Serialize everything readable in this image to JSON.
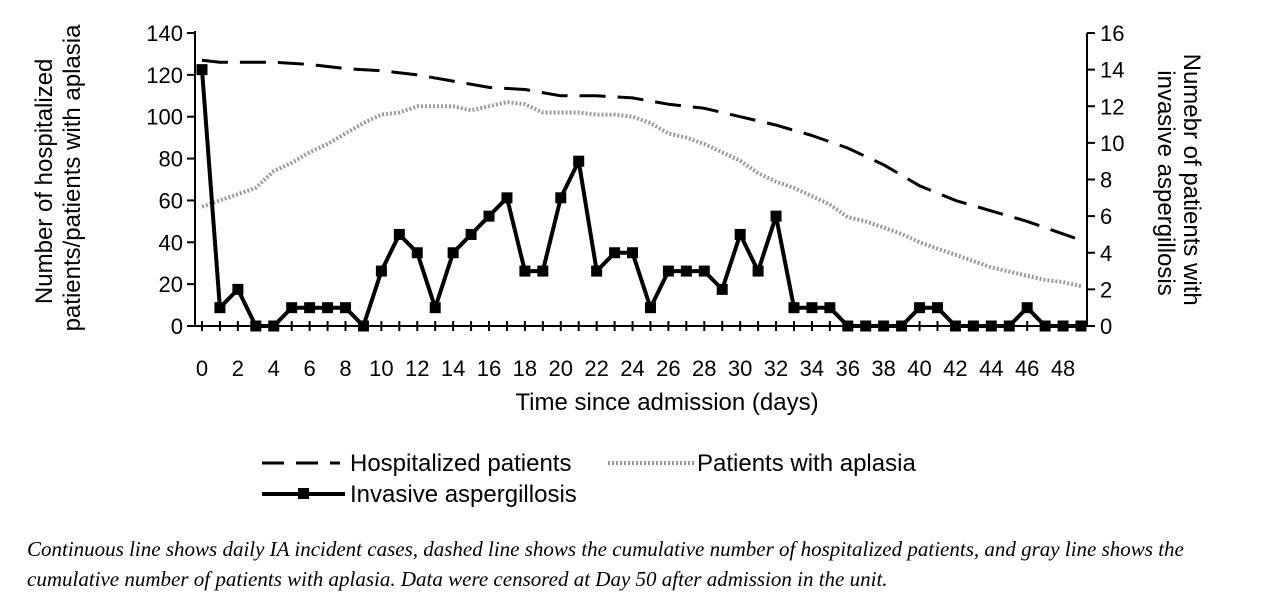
{
  "chart_data": {
    "type": "line",
    "xlabel": "Time since admission (days)",
    "ylabel": "Number of hospitalized patients/patients with aplasia",
    "y2label": "Numebr of patients with invasive aspergillosis",
    "xlim": [
      0,
      49
    ],
    "ylim": [
      0,
      140
    ],
    "y2lim": [
      0,
      16
    ],
    "x_ticks": [
      0,
      2,
      4,
      6,
      8,
      10,
      12,
      14,
      16,
      18,
      20,
      22,
      24,
      26,
      28,
      30,
      32,
      34,
      36,
      38,
      40,
      42,
      44,
      46,
      48
    ],
    "y_ticks": [
      0,
      20,
      40,
      60,
      80,
      100,
      120,
      140
    ],
    "y2_ticks": [
      0,
      2,
      4,
      6,
      8,
      10,
      12,
      14,
      16
    ],
    "series": [
      {
        "name": "Hospitalized patients",
        "axis": "left",
        "style": "dashed",
        "color": "#000000",
        "x": [
          0,
          1,
          4,
          6,
          8,
          10,
          12,
          14,
          16,
          18,
          20,
          22,
          24,
          26,
          28,
          30,
          32,
          34,
          36,
          38,
          40,
          42,
          44,
          46,
          48,
          49
        ],
        "values": [
          127,
          126,
          126,
          125,
          123,
          122,
          120,
          117,
          114,
          113,
          110,
          110,
          109,
          106,
          104,
          100,
          96,
          91,
          85,
          77,
          67,
          60,
          55,
          50,
          44,
          41
        ]
      },
      {
        "name": "Patients with aplasia",
        "axis": "left",
        "style": "dotted",
        "color": "#9a9a9a",
        "x": [
          0,
          1,
          2,
          3,
          4,
          5,
          6,
          7,
          8,
          9,
          10,
          11,
          12,
          13,
          14,
          15,
          16,
          17,
          18,
          19,
          20,
          21,
          22,
          23,
          24,
          25,
          26,
          27,
          28,
          29,
          30,
          31,
          32,
          33,
          34,
          35,
          36,
          37,
          38,
          39,
          40,
          41,
          42,
          43,
          44,
          45,
          46,
          47,
          48,
          49
        ],
        "values": [
          57,
          60,
          63,
          66,
          74,
          78,
          83,
          87,
          92,
          97,
          101,
          102,
          105,
          105,
          105,
          103,
          105,
          107,
          106,
          102,
          102,
          102,
          101,
          101,
          100,
          97,
          92,
          90,
          87,
          83,
          79,
          73,
          69,
          66,
          62,
          58,
          52,
          50,
          47,
          44,
          40,
          37,
          34,
          31,
          28,
          26,
          24,
          22,
          21,
          19
        ]
      },
      {
        "name": "Invasive aspergillosis",
        "axis": "right",
        "style": "solid-square",
        "color": "#000000",
        "x": [
          0,
          1,
          2,
          3,
          4,
          5,
          6,
          7,
          8,
          9,
          10,
          11,
          12,
          13,
          14,
          15,
          16,
          17,
          18,
          19,
          20,
          21,
          22,
          23,
          24,
          25,
          26,
          27,
          28,
          29,
          30,
          31,
          32,
          33,
          34,
          35,
          36,
          37,
          38,
          39,
          40,
          41,
          42,
          43,
          44,
          45,
          46,
          47,
          48,
          49
        ],
        "values": [
          14,
          1,
          2,
          0,
          0,
          1,
          1,
          1,
          1,
          0,
          3,
          5,
          4,
          1,
          4,
          5,
          6,
          7,
          3,
          3,
          7,
          9,
          3,
          4,
          4,
          1,
          3,
          3,
          3,
          2,
          5,
          3,
          6,
          1,
          1,
          1,
          0,
          0,
          0,
          0,
          1,
          1,
          0,
          0,
          0,
          0,
          1,
          0,
          0,
          0
        ]
      }
    ],
    "legend": {
      "placement": "bottom",
      "items": [
        "Hospitalized patients",
        "Patients with aplasia",
        "Invasive aspergillosis"
      ]
    },
    "grid": false
  },
  "caption": "Continuous line shows daily IA incident cases, dashed line shows the cumulative number of hospitalized patients, and gray line shows the cumulative number of patients with aplasia. Data were censored at Day 50 after admission in the unit."
}
